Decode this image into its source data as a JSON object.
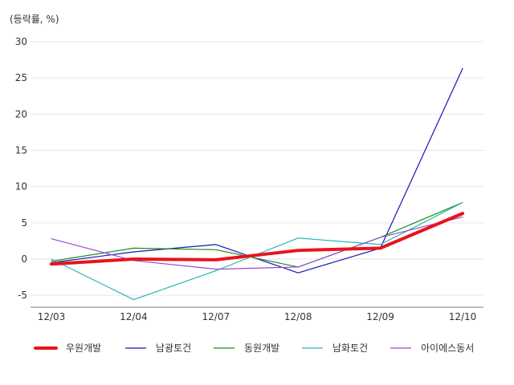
{
  "chart_data": {
    "type": "line",
    "unit_label": "(등락률, %)",
    "x": [
      "12/03",
      "12/04",
      "12/07",
      "12/08",
      "12/09",
      "12/10"
    ],
    "ylim": [
      -6.5,
      30
    ],
    "yticks": [
      -5,
      0,
      5,
      10,
      15,
      20,
      25,
      30
    ],
    "grid": true,
    "legend_position": "bottom",
    "series": [
      {
        "name": "우원개발",
        "color": "#e8141c",
        "width": 4,
        "values": [
          -0.7,
          0.0,
          -0.1,
          1.2,
          1.5,
          6.3
        ]
      },
      {
        "name": "남광토건",
        "color": "#1515b8",
        "width": 1.2,
        "values": [
          -0.5,
          1.0,
          2.0,
          -1.9,
          1.5,
          26.3
        ]
      },
      {
        "name": "동원개발",
        "color": "#1a8a1a",
        "width": 1.2,
        "values": [
          -0.3,
          1.5,
          1.3,
          -1.1,
          3.0,
          7.8
        ]
      },
      {
        "name": "남화토건",
        "color": "#26b5b5",
        "width": 1.2,
        "values": [
          0.0,
          -5.6,
          -1.6,
          2.9,
          2.0,
          7.8
        ]
      },
      {
        "name": "아이에스동서",
        "color": "#9a4ccf",
        "width": 1.2,
        "values": [
          2.8,
          -0.2,
          -1.4,
          -1.1,
          3.0,
          5.8
        ]
      }
    ]
  }
}
